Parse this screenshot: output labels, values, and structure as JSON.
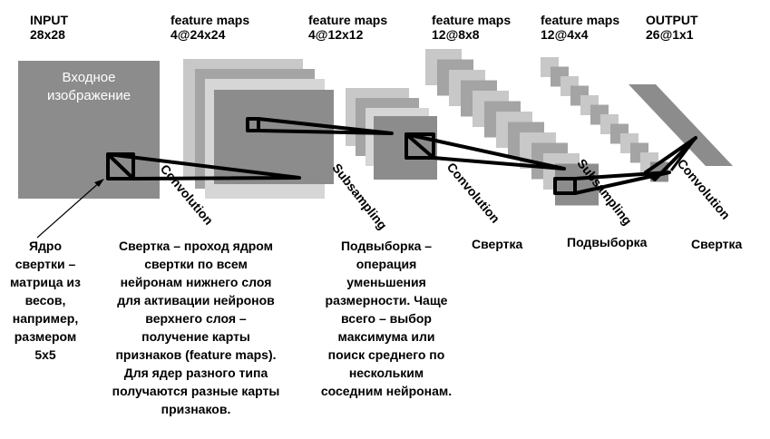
{
  "headers": [
    {
      "title": "INPUT",
      "sub": "28x28"
    },
    {
      "title": "feature maps",
      "sub": "4@24x24"
    },
    {
      "title": "feature maps",
      "sub": "4@12x12"
    },
    {
      "title": "feature maps",
      "sub": "12@8x8"
    },
    {
      "title": "feature maps",
      "sub": "12@4x4"
    },
    {
      "title": "OUTPUT",
      "sub": "26@1x1"
    }
  ],
  "input_image_label": [
    "Входное",
    "изображение"
  ],
  "operations": [
    "Convolution",
    "Subsampling",
    "Convolution",
    "Subsampling",
    "Convolution"
  ],
  "kernel_description": [
    "Ядро",
    "свертки –",
    "матрица из",
    "весов,",
    "например,",
    "размером",
    "5x5"
  ],
  "convolution_description": [
    "Свертка – проход ядром",
    "свертки по всем",
    "нейронам нижнего слоя",
    "для активации нейронов",
    "верхнего слоя –",
    "получение карты",
    "признаков (feature maps).",
    "Для ядер разного типа",
    "получаются разные карты",
    "признаков."
  ],
  "subsampling_description": [
    "Подвыборка –",
    "операция",
    "уменьшения",
    "размерности. Чаще",
    "всего – выбор",
    "максимума или",
    "поиск среднего по",
    "нескольким",
    "соседним нейронам."
  ],
  "short_labels": [
    "Свертка",
    "Подвыборка",
    "Свертка"
  ],
  "colors": {
    "dark_map": "#8c8c8c",
    "mid_map": "#a4a4a4",
    "light_map": "#c8c8c8",
    "kernel_outline": "#000000"
  }
}
